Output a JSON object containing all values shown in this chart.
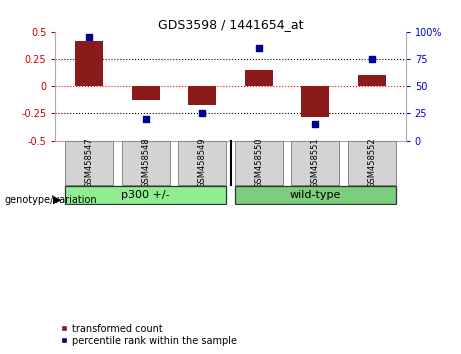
{
  "title": "GDS3598 / 1441654_at",
  "categories": [
    "GSM458547",
    "GSM458548",
    "GSM458549",
    "GSM458550",
    "GSM458551",
    "GSM458552"
  ],
  "bar_values": [
    0.42,
    -0.13,
    -0.17,
    0.15,
    -0.28,
    0.1
  ],
  "dot_values": [
    95,
    20,
    25,
    85,
    15,
    75
  ],
  "bar_color": "#8B1A1A",
  "dot_color": "#00008B",
  "ylim_left": [
    -0.5,
    0.5
  ],
  "ylim_right": [
    0,
    100
  ],
  "yticks_left": [
    -0.5,
    -0.25,
    0,
    0.25,
    0.5
  ],
  "yticks_right": [
    0,
    25,
    50,
    75,
    100
  ],
  "hlines": [
    -0.25,
    0.0,
    0.25
  ],
  "hline_colors": [
    "black",
    "red",
    "black"
  ],
  "hline_styles": [
    "dotted",
    "dotted",
    "dotted"
  ],
  "groups": [
    {
      "label": "p300 +/-",
      "start": 0,
      "end": 2,
      "color": "#90EE90"
    },
    {
      "label": "wild-type",
      "start": 3,
      "end": 5,
      "color": "#7CCD7C"
    }
  ],
  "group_label": "genotype/variation",
  "legend_bar_label": "transformed count",
  "legend_dot_label": "percentile rank within the sample",
  "bg_color": "#ffffff",
  "plot_bg": "#ffffff",
  "tick_color_left": "#CC0000",
  "tick_color_right": "#0000CC",
  "label_box_color": "#d3d3d3",
  "separator_color": "#333333"
}
